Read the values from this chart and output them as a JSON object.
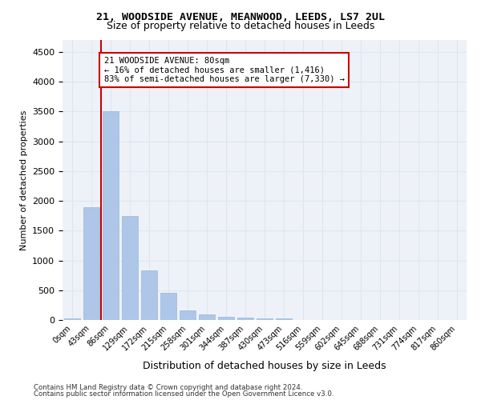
{
  "title1": "21, WOODSIDE AVENUE, MEANWOOD, LEEDS, LS7 2UL",
  "title2": "Size of property relative to detached houses in Leeds",
  "xlabel": "Distribution of detached houses by size in Leeds",
  "ylabel": "Number of detached properties",
  "bin_labels": [
    "0sqm",
    "43sqm",
    "86sqm",
    "129sqm",
    "172sqm",
    "215sqm",
    "258sqm",
    "301sqm",
    "344sqm",
    "387sqm",
    "430sqm",
    "473sqm",
    "516sqm",
    "559sqm",
    "602sqm",
    "645sqm",
    "688sqm",
    "731sqm",
    "774sqm",
    "817sqm",
    "860sqm"
  ],
  "bar_values": [
    30,
    1900,
    3500,
    1750,
    830,
    450,
    165,
    100,
    60,
    45,
    30,
    30,
    0,
    0,
    0,
    0,
    0,
    0,
    0,
    0,
    0
  ],
  "bar_color": "#aec6e8",
  "bar_edge_color": "#9ab8d8",
  "grid_color": "#dce6f0",
  "background_color": "#eef2f8",
  "vline_color": "#cc0000",
  "annotation_text": "21 WOODSIDE AVENUE: 80sqm\n← 16% of detached houses are smaller (1,416)\n83% of semi-detached houses are larger (7,330) →",
  "annotation_box_color": "#ffffff",
  "annotation_box_edge": "#cc0000",
  "ylim": [
    0,
    4700
  ],
  "yticks": [
    0,
    500,
    1000,
    1500,
    2000,
    2500,
    3000,
    3500,
    4000,
    4500
  ],
  "footer_line1": "Contains HM Land Registry data © Crown copyright and database right 2024.",
  "footer_line2": "Contains public sector information licensed under the Open Government Licence v3.0."
}
